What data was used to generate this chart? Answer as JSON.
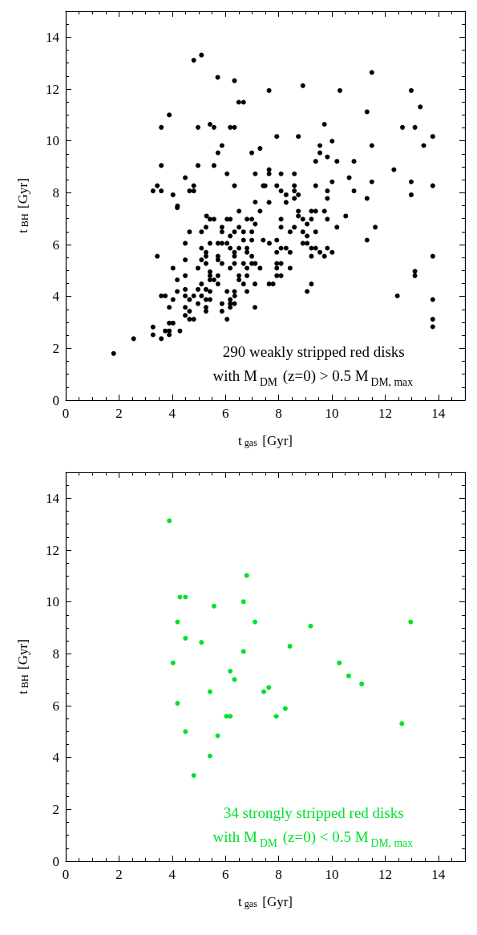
{
  "chart_data": [
    {
      "type": "scatter",
      "xlabel": "t$_{gas}$ [Gyr]",
      "ylabel": "t$_{BH}$ [Gyr]",
      "xlim": [
        0,
        15
      ],
      "ylim": [
        0,
        15
      ],
      "xticks": [
        0,
        2,
        4,
        6,
        8,
        10,
        12,
        14
      ],
      "yticks": [
        0,
        2,
        4,
        6,
        8,
        10,
        12,
        14
      ],
      "grid": false,
      "marker": "circle",
      "annotations": [
        "290 weakly stripped red disks\nwith M$_{DM}$ (z=0) > 0.5 M$_{DM, max}$"
      ],
      "series": [
        {
          "color": "#000000",
          "x": [
            4.81,
            5.1,
            5.71,
            6.34,
            6.5,
            6.68,
            3.89,
            3.59,
            4.97,
            5.42,
            5.57,
            6.18,
            6.34,
            5.87,
            5.72,
            6.99,
            7.3,
            3.59,
            4.97,
            5.57,
            6.06,
            7.12,
            4.49,
            3.44,
            4.81,
            6.34,
            7.42,
            3.28,
            3.59,
            4.65,
            4.81,
            4.03,
            7.12,
            4.2,
            11.5,
            8.91,
            7.64,
            10.3,
            12.98,
            13.32,
            11.32,
            9.72,
            12.65,
            13.12,
            7.93,
            8.74,
            13.79,
            10.01,
            9.55,
            11.5,
            13.45,
            9.55,
            9.83,
            9.39,
            10.19,
            10.83,
            7.64,
            12.33,
            7.64,
            8.09,
            8.59,
            10.65,
            7.49,
            7.93,
            8.59,
            9.39,
            10.01,
            11.5,
            12.98,
            13.79,
            8.09,
            8.59,
            9.83,
            10.83,
            8.28,
            8.74,
            12.98,
            8.59,
            9.83,
            11.32,
            7.64,
            8.28,
            8.74,
            9.23,
            9.39,
            9.72,
            8.74,
            10.52,
            8.09,
            8.91,
            9.23,
            9.83,
            9.07,
            8.09,
            8.59,
            10.19,
            11.63,
            8.43,
            8.91,
            9.39,
            9.07,
            11.32,
            7.93,
            8.91,
            9.07,
            7.65,
            8.09,
            8.28,
            9.23,
            9.39,
            9.83,
            7.93,
            8.43,
            9.55,
            10.01,
            9.23,
            9.72,
            13.79,
            7.93,
            8.09,
            7.93,
            8.43,
            13.12,
            13.12,
            7.93,
            8.09,
            7.64,
            7.79,
            9.23,
            9.07,
            12.46,
            13.79,
            13.79,
            13.79,
            4.19,
            5.29,
            5.42,
            5.57,
            6.06,
            6.18,
            6.51,
            6.81,
            6.99,
            7.3,
            5.27,
            5.87,
            6.51,
            7.12,
            4.65,
            5.1,
            5.87,
            6.34,
            6.68,
            6.99,
            6.18,
            6.68,
            6.99,
            7.42,
            4.49,
            5.42,
            5.72,
            5.87,
            6.06,
            5.1,
            6.18,
            6.51,
            6.81,
            5.27,
            6.34,
            6.81,
            3.44,
            5.27,
            5.72,
            6.34,
            6.99,
            4.49,
            5.1,
            5.27,
            5.72,
            5.87,
            6.34,
            6.68,
            6.99,
            7.12,
            4.03,
            4.97,
            6.18,
            6.81,
            7.3,
            5.42,
            4.49,
            5.42,
            5.72,
            6.51,
            6.81,
            4.19,
            5.42,
            5.57,
            6.51,
            6.68,
            5.1,
            5.72,
            7.11,
            4.97,
            5.27,
            6.81,
            4.19,
            4.49,
            5.42,
            6.06,
            6.34,
            3.59,
            3.74,
            4.49,
            4.81,
            5.1,
            5.42,
            4.03,
            4.65,
            5.27,
            6.18,
            6.35,
            4.97,
            5.87,
            6.18,
            6.34,
            3.89,
            4.49,
            5.27,
            5.87,
            5.27,
            4.65,
            6.18,
            7.11,
            4.49,
            4.65,
            4.81,
            6.06,
            3.89,
            4.03,
            3.28,
            3.74,
            3.89,
            4.29,
            3.28,
            3.89,
            3.59,
            2.55,
            1.8
          ],
          "values": [
            13.11,
            13.31,
            12.45,
            12.32,
            11.49,
            11.49,
            11.0,
            10.52,
            10.52,
            10.64,
            10.52,
            10.52,
            10.52,
            9.82,
            9.54,
            9.54,
            9.71,
            9.05,
            9.05,
            9.05,
            8.73,
            8.73,
            8.58,
            8.27,
            8.27,
            8.27,
            8.27,
            8.07,
            8.07,
            8.07,
            8.07,
            7.92,
            7.64,
            7.49,
            12.64,
            12.13,
            11.94,
            11.94,
            11.94,
            11.31,
            11.12,
            10.64,
            10.52,
            10.52,
            10.17,
            10.17,
            10.17,
            9.99,
            9.82,
            9.82,
            9.82,
            9.54,
            9.38,
            9.21,
            9.21,
            9.21,
            8.89,
            8.89,
            8.73,
            8.73,
            8.73,
            8.58,
            8.27,
            8.27,
            8.27,
            8.27,
            8.42,
            8.42,
            8.42,
            8.27,
            8.07,
            8.07,
            8.07,
            8.07,
            7.92,
            7.92,
            7.92,
            7.78,
            7.78,
            7.78,
            7.63,
            7.63,
            7.29,
            7.29,
            7.29,
            7.29,
            7.1,
            7.1,
            6.98,
            6.98,
            6.98,
            6.98,
            6.79,
            6.67,
            6.67,
            6.67,
            6.67,
            6.49,
            6.49,
            6.49,
            6.33,
            6.17,
            6.17,
            6.05,
            6.05,
            6.05,
            5.86,
            5.86,
            5.86,
            5.86,
            5.86,
            5.7,
            5.7,
            5.7,
            5.7,
            5.55,
            5.55,
            5.55,
            5.27,
            5.27,
            5.09,
            5.09,
            4.97,
            4.8,
            4.8,
            4.8,
            4.48,
            4.48,
            4.48,
            4.19,
            4.02,
            3.88,
            3.12,
            2.83,
            7.42,
            7.1,
            6.98,
            6.98,
            6.98,
            6.98,
            7.29,
            6.98,
            6.98,
            7.29,
            6.67,
            6.67,
            6.67,
            6.79,
            6.49,
            6.49,
            6.49,
            6.49,
            6.49,
            6.49,
            6.33,
            6.17,
            6.17,
            6.17,
            6.05,
            6.05,
            6.05,
            6.05,
            6.05,
            5.86,
            5.86,
            5.86,
            5.86,
            5.7,
            5.7,
            5.7,
            5.55,
            5.55,
            5.55,
            5.55,
            5.55,
            5.41,
            5.41,
            5.27,
            5.41,
            5.27,
            5.27,
            5.27,
            5.27,
            5.27,
            5.09,
            5.09,
            5.09,
            5.09,
            5.09,
            4.95,
            4.8,
            4.8,
            4.8,
            4.8,
            4.8,
            4.64,
            4.64,
            4.64,
            4.64,
            4.48,
            4.48,
            4.48,
            4.48,
            4.27,
            4.27,
            4.19,
            4.19,
            4.27,
            4.19,
            4.19,
            4.19,
            4.02,
            4.02,
            4.02,
            4.02,
            4.02,
            3.88,
            3.88,
            3.88,
            3.88,
            3.88,
            4.02,
            3.72,
            3.72,
            3.72,
            3.72,
            3.58,
            3.58,
            3.58,
            3.43,
            3.43,
            3.43,
            3.58,
            3.58,
            3.27,
            3.12,
            3.12,
            3.12,
            2.97,
            2.97,
            2.82,
            2.67,
            2.67,
            2.67,
            2.52,
            2.52,
            2.37,
            2.37,
            1.8
          ]
        }
      ]
    },
    {
      "type": "scatter",
      "xlabel": "t$_{gas}$ [Gyr]",
      "ylabel": "t$_{BH}$ [Gyr]",
      "xlim": [
        0,
        15
      ],
      "ylim": [
        0,
        15
      ],
      "xticks": [
        0,
        2,
        4,
        6,
        8,
        10,
        12,
        14
      ],
      "yticks": [
        0,
        2,
        4,
        6,
        8,
        10,
        12,
        14
      ],
      "grid": false,
      "marker": "circle",
      "annotations": [
        "34 strongly stripped red disks\nwith M$_{DM}$ (z=0) < 0.5 M$_{DM, max}$"
      ],
      "series": [
        {
          "color": "#00e22a",
          "x": [
            3.89,
            6.8,
            4.29,
            4.5,
            6.68,
            5.57,
            4.2,
            7.11,
            9.2,
            12.96,
            4.5,
            5.1,
            8.42,
            6.68,
            4.03,
            10.28,
            6.18,
            10.63,
            6.34,
            11.12,
            7.63,
            5.42,
            7.44,
            4.2,
            8.25,
            6.04,
            6.18,
            7.91,
            12.63,
            4.5,
            5.71,
            5.42,
            4.81
          ],
          "values": [
            13.13,
            11.02,
            10.19,
            10.19,
            10.01,
            9.84,
            9.23,
            9.23,
            9.07,
            9.23,
            8.6,
            8.44,
            8.29,
            8.09,
            7.65,
            7.65,
            7.33,
            7.15,
            7.01,
            6.84,
            6.7,
            6.54,
            6.54,
            6.09,
            5.89,
            5.59,
            5.59,
            5.59,
            5.31,
            5.0,
            4.84,
            4.06,
            3.31
          ]
        }
      ]
    }
  ]
}
